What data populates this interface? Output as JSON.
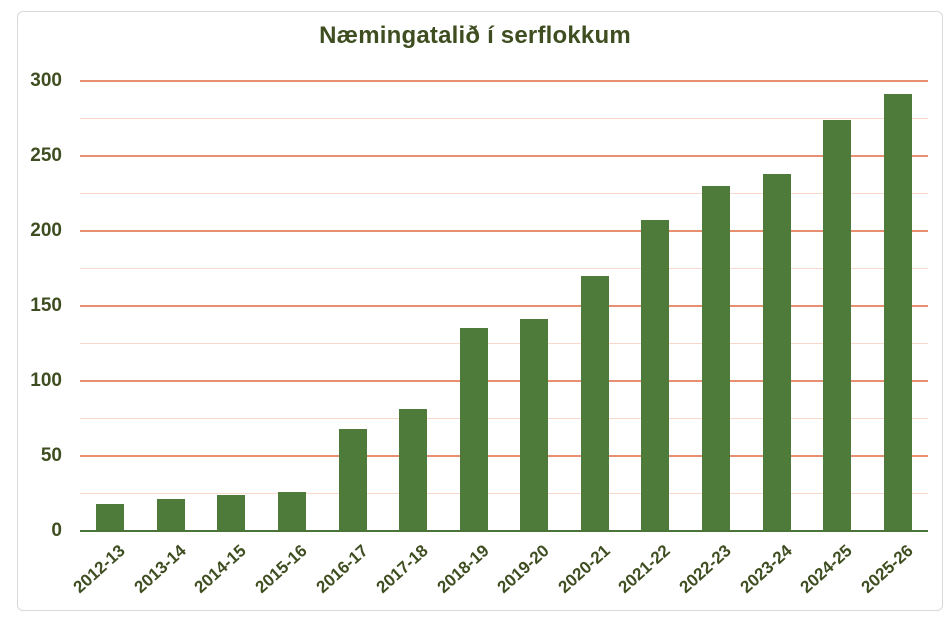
{
  "title": "Næmingatalið í serflokkum",
  "colors": {
    "bar_fill": "#4e7b3a",
    "axis_line": "#4a7536",
    "grid_major": "#e78f70",
    "grid_minor": "#f8d8ca",
    "text": "#3f4e20",
    "panel_border": "#d9d9d9",
    "background": "#ffffff"
  },
  "chart_data": {
    "type": "bar",
    "title": "Næmingatalið í serflokkum",
    "categories": [
      "2012-13",
      "2013-14",
      "2014-15",
      "2015-16",
      "2016-17",
      "2017-18",
      "2018-19",
      "2019-20",
      "2020-21",
      "2021-22",
      "2022-23",
      "2023-24",
      "2024-25",
      "2025-26"
    ],
    "values": [
      18,
      21,
      24,
      26,
      68,
      81,
      135,
      141,
      170,
      207,
      230,
      238,
      274,
      291
    ],
    "xlabel": "",
    "ylabel": "",
    "ylim": [
      0,
      300
    ],
    "y_ticks": [
      0,
      50,
      100,
      150,
      200,
      250,
      300
    ],
    "y_major_step": 50,
    "y_minor_step": 25,
    "grid": "horizontal-only",
    "legend": "none",
    "bar_orientation": "vertical"
  }
}
